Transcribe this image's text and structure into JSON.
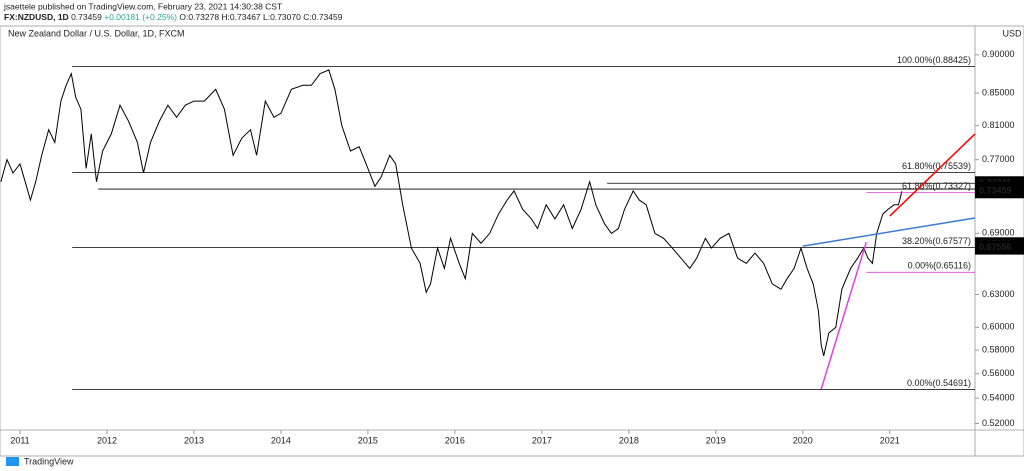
{
  "header": {
    "publisher": "jsaettele published on TradingView.com, February 23, 2021 14:30:38 CST",
    "symbol": "FX:NZDUSD, 1D",
    "last": "0.73459",
    "change": "+0.00181 (+0.25%)",
    "open": "O:0.73278",
    "high": "H:0.73467",
    "low": "L:0.73070",
    "close": "C:0.73459"
  },
  "footer": {
    "brand": "TradingView"
  },
  "chart_data": {
    "type": "line",
    "title": "New Zealand Dollar / U.S. Dollar, 1D, FXCM",
    "currency": "USD",
    "log_scale": true,
    "color": "#000000",
    "x": [
      2010.78,
      2010.85,
      2010.92,
      2011.0,
      2011.06,
      2011.12,
      2011.18,
      2011.25,
      2011.33,
      2011.4,
      2011.47,
      2011.53,
      2011.59,
      2011.64,
      2011.7,
      2011.76,
      2011.82,
      2011.88,
      2011.95,
      2012.05,
      2012.15,
      2012.25,
      2012.35,
      2012.42,
      2012.5,
      2012.6,
      2012.7,
      2012.8,
      2012.9,
      2013.0,
      2013.12,
      2013.25,
      2013.35,
      2013.45,
      2013.55,
      2013.65,
      2013.72,
      2013.82,
      2013.92,
      2014.0,
      2014.12,
      2014.25,
      2014.35,
      2014.45,
      2014.55,
      2014.62,
      2014.7,
      2014.8,
      2014.9,
      2015.0,
      2015.08,
      2015.15,
      2015.25,
      2015.32,
      2015.4,
      2015.5,
      2015.6,
      2015.67,
      2015.72,
      2015.8,
      2015.88,
      2015.95,
      2016.05,
      2016.12,
      2016.2,
      2016.3,
      2016.4,
      2016.5,
      2016.6,
      2016.68,
      2016.78,
      2016.88,
      2016.95,
      2017.05,
      2017.15,
      2017.25,
      2017.35,
      2017.45,
      2017.55,
      2017.62,
      2017.72,
      2017.8,
      2017.88,
      2017.95,
      2018.05,
      2018.12,
      2018.2,
      2018.3,
      2018.4,
      2018.5,
      2018.6,
      2018.7,
      2018.78,
      2018.88,
      2018.95,
      2019.05,
      2019.15,
      2019.25,
      2019.35,
      2019.45,
      2019.55,
      2019.65,
      2019.75,
      2019.82,
      2019.9,
      2019.98,
      2020.05,
      2020.12,
      2020.18,
      2020.21,
      2020.24,
      2020.3,
      2020.38,
      2020.45,
      2020.55,
      2020.63,
      2020.7,
      2020.75,
      2020.8,
      2020.85,
      2020.92,
      2020.98,
      2021.05,
      2021.1,
      2021.14
    ],
    "values": [
      0.745,
      0.77,
      0.755,
      0.765,
      0.745,
      0.725,
      0.745,
      0.775,
      0.805,
      0.79,
      0.84,
      0.86,
      0.875,
      0.845,
      0.83,
      0.76,
      0.8,
      0.745,
      0.78,
      0.8,
      0.835,
      0.815,
      0.79,
      0.755,
      0.79,
      0.815,
      0.835,
      0.82,
      0.835,
      0.84,
      0.84,
      0.855,
      0.83,
      0.775,
      0.795,
      0.805,
      0.775,
      0.84,
      0.82,
      0.825,
      0.855,
      0.86,
      0.86,
      0.875,
      0.88,
      0.855,
      0.81,
      0.78,
      0.785,
      0.76,
      0.74,
      0.75,
      0.775,
      0.765,
      0.72,
      0.675,
      0.66,
      0.632,
      0.64,
      0.675,
      0.655,
      0.685,
      0.66,
      0.645,
      0.69,
      0.68,
      0.69,
      0.71,
      0.725,
      0.735,
      0.715,
      0.705,
      0.695,
      0.72,
      0.705,
      0.72,
      0.695,
      0.715,
      0.745,
      0.72,
      0.7,
      0.69,
      0.695,
      0.715,
      0.735,
      0.725,
      0.72,
      0.69,
      0.685,
      0.675,
      0.665,
      0.655,
      0.665,
      0.685,
      0.675,
      0.685,
      0.69,
      0.665,
      0.66,
      0.67,
      0.66,
      0.64,
      0.635,
      0.645,
      0.655,
      0.675,
      0.655,
      0.64,
      0.615,
      0.585,
      0.575,
      0.595,
      0.6,
      0.635,
      0.655,
      0.665,
      0.675,
      0.665,
      0.66,
      0.69,
      0.71,
      0.715,
      0.72,
      0.72,
      0.73459
    ],
    "xlim": [
      2010.77,
      2021.98
    ],
    "xticks": [
      2011,
      2012,
      2013,
      2014,
      2015,
      2016,
      2017,
      2018,
      2019,
      2020,
      2021
    ],
    "ylim": [
      0.515,
      0.92
    ],
    "yticks": [
      {
        "value": 0.9,
        "label": "0.90000"
      },
      {
        "value": 0.85,
        "label": "0.85000"
      },
      {
        "value": 0.81,
        "label": "0.81000"
      },
      {
        "value": 0.77,
        "label": "0.77000"
      },
      {
        "value": 0.69,
        "label": "0.69000"
      },
      {
        "value": 0.63,
        "label": "0.63000"
      },
      {
        "value": 0.6,
        "label": "0.60000"
      },
      {
        "value": 0.58,
        "label": "0.58000"
      },
      {
        "value": 0.56,
        "label": "0.56000"
      },
      {
        "value": 0.54,
        "label": "0.54000"
      },
      {
        "value": 0.52,
        "label": "0.52000"
      }
    ],
    "levels": [
      {
        "value": 0.88425,
        "label": "100.00%(0.88425)",
        "start": 2011.6,
        "color": "#000000"
      },
      {
        "value": 0.75539,
        "label": "61.80%(0.75539)",
        "start": 2011.6,
        "color": "#000000"
      },
      {
        "value": 0.67577,
        "label": "38.20%(0.67577)",
        "start": 2011.6,
        "color": "#000000"
      },
      {
        "value": 0.54691,
        "label": "0.00%(0.54691)",
        "start": 2011.6,
        "color": "#000000"
      },
      {
        "value": 0.73327,
        "label": "61.80%(0.73327)",
        "start": 2020.73,
        "color": "#e040e0"
      },
      {
        "value": 0.65116,
        "label": "0.00%(0.65116)",
        "start": 2020.73,
        "color": "#e040e0"
      }
    ],
    "hlines": [
      {
        "value": 0.737,
        "start": 2011.9,
        "color": "#000000"
      },
      {
        "value": 0.7434,
        "start": 2017.75,
        "color": "#000000"
      }
    ],
    "trendlines": [
      {
        "x": [
          2020.0,
          2021.98
        ],
        "y": [
          0.677,
          0.706
        ],
        "color": "#3a7bd5"
      },
      {
        "x": [
          2020.21,
          2020.73
        ],
        "y": [
          0.54691,
          0.681
        ],
        "color": "#e040e0"
      },
      {
        "x": [
          2021.0,
          2021.98
        ],
        "y": [
          0.708,
          0.8
        ],
        "color": "#ff0000"
      }
    ],
    "price_labels": [
      {
        "value": 0.74341,
        "label": "0.74341"
      },
      {
        "value": 0.73705,
        "label": "0.73705"
      },
      {
        "value": 0.73459,
        "label": "0.73459"
      },
      {
        "value": 0.6789,
        "label": "0.67890"
      },
      {
        "value": 0.67556,
        "label": "0.67556"
      }
    ]
  }
}
